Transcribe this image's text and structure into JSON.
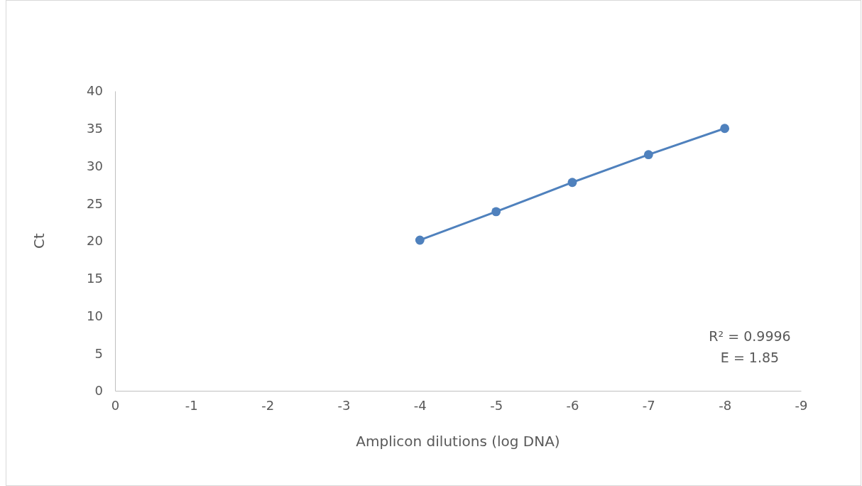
{
  "chart_data": {
    "type": "line",
    "xlabel": "Amplicon dilutions (log DNA)",
    "ylabel": "Ct",
    "x": [
      -4,
      -5,
      -6,
      -7,
      -8
    ],
    "series": [
      {
        "color": "#4f81bd",
        "values": [
          20.1,
          23.9,
          27.8,
          31.5,
          35.0
        ]
      }
    ],
    "xlim": [
      0,
      -9
    ],
    "xticks": [
      0,
      -1,
      -2,
      -3,
      -4,
      -5,
      -6,
      -7,
      -8,
      -9
    ],
    "ylim": [
      0,
      40
    ],
    "yticks": [
      0,
      5,
      10,
      15,
      20,
      25,
      30,
      35,
      40
    ],
    "marker": "circle",
    "line_style": "solid",
    "grid": false,
    "annotations": [
      "R² = 0.9996",
      "E = 1.85"
    ]
  }
}
